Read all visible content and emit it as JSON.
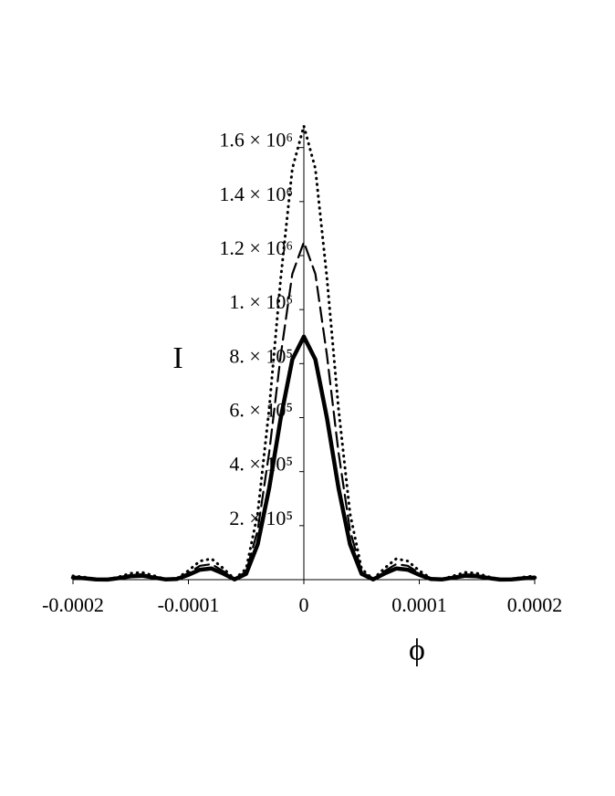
{
  "chart_data": {
    "type": "line",
    "xlabel": "ϕ",
    "ylabel": "I",
    "x": [
      -0.0002,
      -0.00019,
      -0.00018,
      -0.00017,
      -0.00016,
      -0.00015,
      -0.00014,
      -0.00013,
      -0.00012,
      -0.00011,
      -0.0001,
      -9e-05,
      -8e-05,
      -7e-05,
      -6e-05,
      -5e-05,
      -4e-05,
      -3e-05,
      -2e-05,
      -1e-05,
      0,
      1e-05,
      2e-05,
      3e-05,
      4e-05,
      5e-05,
      6e-05,
      7e-05,
      8e-05,
      9e-05,
      0.0001,
      0.00011,
      0.00012,
      0.00013,
      0.00014,
      0.00015,
      0.00016,
      0.00017,
      0.00018,
      0.00019,
      0.0002
    ],
    "series": [
      {
        "color": "#000000",
        "style": "solid",
        "values": [
          7500,
          5000,
          1000,
          500,
          5800,
          12600,
          14500,
          7900,
          1000,
          2600,
          17900,
          36900,
          41400,
          22900,
          1000,
          21600,
          131000,
          340000,
          599000,
          815000,
          900000,
          815000,
          599000,
          340000,
          131000,
          21600,
          1000,
          22900,
          41400,
          36900,
          17900,
          2600,
          1000,
          7900,
          14500,
          12600,
          5800,
          500,
          1000,
          5000,
          7500
        ]
      },
      {
        "color": "#000000",
        "style": "dashed",
        "values": [
          10400,
          7000,
          1400,
          600,
          8000,
          17500,
          20100,
          11000,
          1400,
          3600,
          24900,
          51300,
          57500,
          31800,
          1400,
          30000,
          182300,
          472000,
          831500,
          1132000,
          1250000,
          1132000,
          831500,
          472000,
          182300,
          30000,
          1400,
          31800,
          57500,
          51300,
          24900,
          3600,
          1400,
          11000,
          20100,
          17500,
          8000,
          600,
          1400,
          7000,
          10400
        ]
      },
      {
        "color": "#000000",
        "style": "dotted",
        "values": [
          13900,
          9400,
          1800,
          800,
          10800,
          23500,
          27000,
          14800,
          1800,
          4900,
          33400,
          68900,
          77300,
          42700,
          1800,
          40300,
          244900,
          634400,
          1117500,
          1521700,
          1680000,
          1521700,
          1117500,
          634400,
          244900,
          40300,
          1800,
          42700,
          77300,
          68900,
          33400,
          4900,
          1800,
          14800,
          27000,
          23500,
          10800,
          800,
          1800,
          9400,
          13900
        ]
      }
    ],
    "xlim": [
      -0.0002,
      0.0002
    ],
    "xticks": [
      -0.0002,
      -0.0001,
      0,
      0.0001,
      0.0002
    ],
    "ylim": [
      0,
      1680000
    ],
    "yticks": [
      {
        "value": 200000,
        "label": "2. × 10⁵"
      },
      {
        "value": 400000,
        "label": "4. × 10⁵"
      },
      {
        "value": 600000,
        "label": "6. × 10⁵"
      },
      {
        "value": 800000,
        "label": "8. × 10⁵"
      },
      {
        "value": 1000000,
        "label": "1. × 10⁶"
      },
      {
        "value": 1200000,
        "label": "1.2 × 10⁶"
      },
      {
        "value": 1400000,
        "label": "1.4 × 10⁶"
      },
      {
        "value": 1600000,
        "label": "1.6 × 10⁶"
      }
    ],
    "grid": false
  }
}
